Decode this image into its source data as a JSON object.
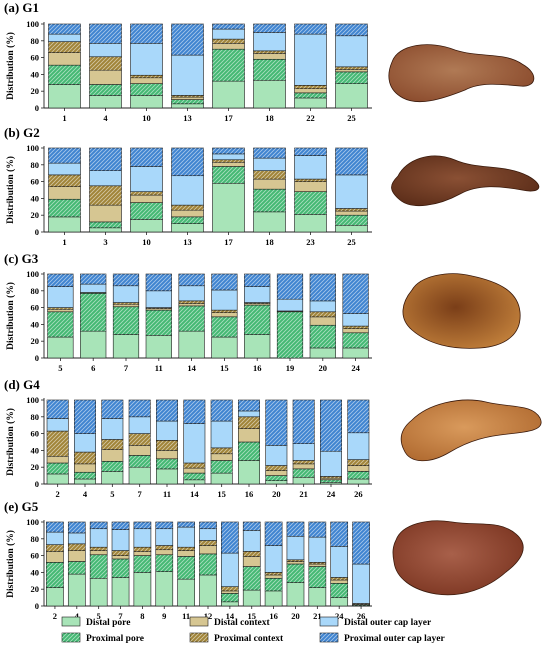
{
  "figure": {
    "legend": [
      {
        "key": "distal_pore",
        "label": "Distal pore",
        "color": "#a8e4b8",
        "pattern": false
      },
      {
        "key": "proximal_pore",
        "label": "Proximal pore",
        "color": "#44b873",
        "pattern": true
      },
      {
        "key": "distal_context",
        "label": "Distal context",
        "color": "#d6c692",
        "pattern": false
      },
      {
        "key": "proximal_context",
        "label": "Proximal context",
        "color": "#a08438",
        "pattern": true
      },
      {
        "key": "distal_cap",
        "label": "Distal outer cap layer",
        "color": "#a9d8fa",
        "pattern": false
      },
      {
        "key": "proximal_cap",
        "label": "Proximal outer cap layer",
        "color": "#3f84d0",
        "pattern": true
      }
    ]
  },
  "chart_data": [
    {
      "type": "bar",
      "stacked": true,
      "label": "(a) G1",
      "ylabel": "Distribution (%)",
      "ylim": [
        0,
        100
      ],
      "yticks": [
        0,
        20,
        40,
        60,
        80,
        100
      ],
      "categories": [
        "1",
        "4",
        "10",
        "13",
        "17",
        "18",
        "22",
        "25"
      ],
      "series": [
        {
          "name": "Distal pore",
          "values": [
            28,
            15,
            15,
            5,
            32,
            33,
            12,
            29
          ]
        },
        {
          "name": "Proximal pore",
          "values": [
            23,
            13,
            14,
            5,
            38,
            25,
            6,
            14
          ]
        },
        {
          "name": "Distal context",
          "values": [
            15,
            17,
            7,
            3,
            7,
            7,
            5,
            3
          ]
        },
        {
          "name": "Proximal context",
          "values": [
            13,
            16,
            3,
            2,
            5,
            3,
            4,
            3
          ]
        },
        {
          "name": "Distal outer cap layer",
          "values": [
            9,
            16,
            38,
            48,
            12,
            22,
            61,
            37
          ]
        },
        {
          "name": "Proximal outer cap layer",
          "values": [
            12,
            23,
            23,
            37,
            6,
            10,
            12,
            14
          ]
        }
      ]
    },
    {
      "type": "bar",
      "stacked": true,
      "label": "(b) G2",
      "ylabel": "Distribution (%)",
      "ylim": [
        0,
        100
      ],
      "yticks": [
        0,
        20,
        40,
        60,
        80,
        100
      ],
      "categories": [
        "1",
        "3",
        "10",
        "13",
        "17",
        "18",
        "23",
        "25"
      ],
      "series": [
        {
          "name": "Distal pore",
          "values": [
            18,
            5,
            15,
            10,
            58,
            24,
            21,
            8
          ]
        },
        {
          "name": "Proximal pore",
          "values": [
            21,
            7,
            20,
            8,
            20,
            27,
            27,
            12
          ]
        },
        {
          "name": "Distal context",
          "values": [
            15,
            20,
            9,
            8,
            5,
            12,
            12,
            5
          ]
        },
        {
          "name": "Proximal context",
          "values": [
            14,
            23,
            4,
            6,
            3,
            10,
            3,
            3
          ]
        },
        {
          "name": "Distal outer cap layer",
          "values": [
            14,
            18,
            30,
            35,
            7,
            15,
            28,
            40
          ]
        },
        {
          "name": "Proximal outer cap layer",
          "values": [
            18,
            27,
            22,
            33,
            7,
            12,
            9,
            32
          ]
        }
      ]
    },
    {
      "type": "bar",
      "stacked": true,
      "label": "(c) G3",
      "ylabel": "Distribution (%)",
      "ylim": [
        0,
        100
      ],
      "yticks": [
        0,
        20,
        40,
        60,
        80,
        100
      ],
      "categories": [
        "5",
        "6",
        "7",
        "11",
        "14",
        "15",
        "16",
        "19",
        "20",
        "24"
      ],
      "series": [
        {
          "name": "Distal pore",
          "values": [
            25,
            32,
            28,
            27,
            32,
            25,
            28,
            0,
            12,
            12
          ]
        },
        {
          "name": "Proximal pore",
          "values": [
            30,
            45,
            33,
            30,
            30,
            24,
            35,
            55,
            27,
            18
          ]
        },
        {
          "name": "Distal context",
          "values": [
            3,
            1,
            3,
            2,
            3,
            5,
            2,
            1,
            10,
            5
          ]
        },
        {
          "name": "Proximal context",
          "values": [
            2,
            0,
            2,
            1,
            3,
            3,
            1,
            0,
            6,
            3
          ]
        },
        {
          "name": "Distal outer cap layer",
          "values": [
            25,
            10,
            20,
            20,
            18,
            24,
            19,
            14,
            13,
            15
          ]
        },
        {
          "name": "Proximal outer cap layer",
          "values": [
            15,
            12,
            14,
            20,
            14,
            19,
            15,
            30,
            32,
            47
          ]
        }
      ]
    },
    {
      "type": "bar",
      "stacked": true,
      "label": "(d) G4",
      "ylabel": "Distribution (%)",
      "ylim": [
        0,
        100
      ],
      "yticks": [
        0,
        20,
        40,
        60,
        80,
        100
      ],
      "categories": [
        "2",
        "4",
        "5",
        "7",
        "11",
        "14",
        "15",
        "16",
        "20",
        "21",
        "24",
        "26"
      ],
      "series": [
        {
          "name": "Distal pore",
          "values": [
            12,
            6,
            15,
            20,
            18,
            5,
            13,
            28,
            4,
            8,
            2,
            6
          ]
        },
        {
          "name": "Proximal pore",
          "values": [
            13,
            8,
            12,
            14,
            12,
            8,
            15,
            22,
            6,
            10,
            3,
            9
          ]
        },
        {
          "name": "Distal context",
          "values": [
            8,
            10,
            14,
            12,
            10,
            6,
            8,
            16,
            6,
            6,
            2,
            7
          ]
        },
        {
          "name": "Proximal context",
          "values": [
            30,
            14,
            12,
            14,
            12,
            6,
            7,
            14,
            6,
            4,
            2,
            7
          ]
        },
        {
          "name": "Distal outer cap layer",
          "values": [
            15,
            22,
            25,
            20,
            23,
            47,
            32,
            7,
            24,
            20,
            30,
            32
          ]
        },
        {
          "name": "Proximal outer cap layer",
          "values": [
            22,
            40,
            22,
            20,
            25,
            28,
            25,
            13,
            54,
            52,
            61,
            39
          ]
        }
      ]
    },
    {
      "type": "bar",
      "stacked": true,
      "label": "(e) G5",
      "ylabel": "Distribution (%)",
      "ylim": [
        0,
        100
      ],
      "yticks": [
        0,
        20,
        40,
        60,
        80,
        100
      ],
      "categories": [
        "2",
        "4",
        "5",
        "7",
        "8",
        "9",
        "11",
        "12",
        "14",
        "15",
        "16",
        "20",
        "21",
        "24",
        "26"
      ],
      "series": [
        {
          "name": "Distal pore",
          "values": [
            22,
            38,
            33,
            34,
            40,
            41,
            32,
            37,
            5,
            19,
            18,
            28,
            22,
            10,
            0
          ]
        },
        {
          "name": "Proximal pore",
          "values": [
            30,
            15,
            28,
            22,
            20,
            20,
            27,
            25,
            10,
            28,
            15,
            22,
            25,
            17,
            1
          ]
        },
        {
          "name": "Distal context",
          "values": [
            13,
            13,
            5,
            4,
            5,
            6,
            7,
            10,
            3,
            12,
            4,
            3,
            3,
            4,
            1
          ]
        },
        {
          "name": "Proximal context",
          "values": [
            8,
            8,
            4,
            6,
            5,
            5,
            4,
            6,
            5,
            6,
            3,
            2,
            2,
            3,
            1
          ]
        },
        {
          "name": "Distal outer cap layer",
          "values": [
            15,
            13,
            22,
            25,
            22,
            20,
            24,
            14,
            40,
            25,
            32,
            28,
            30,
            37,
            47
          ]
        },
        {
          "name": "Proximal outer cap layer",
          "values": [
            12,
            13,
            8,
            9,
            8,
            8,
            6,
            8,
            37,
            10,
            28,
            17,
            18,
            29,
            50
          ]
        }
      ]
    }
  ]
}
